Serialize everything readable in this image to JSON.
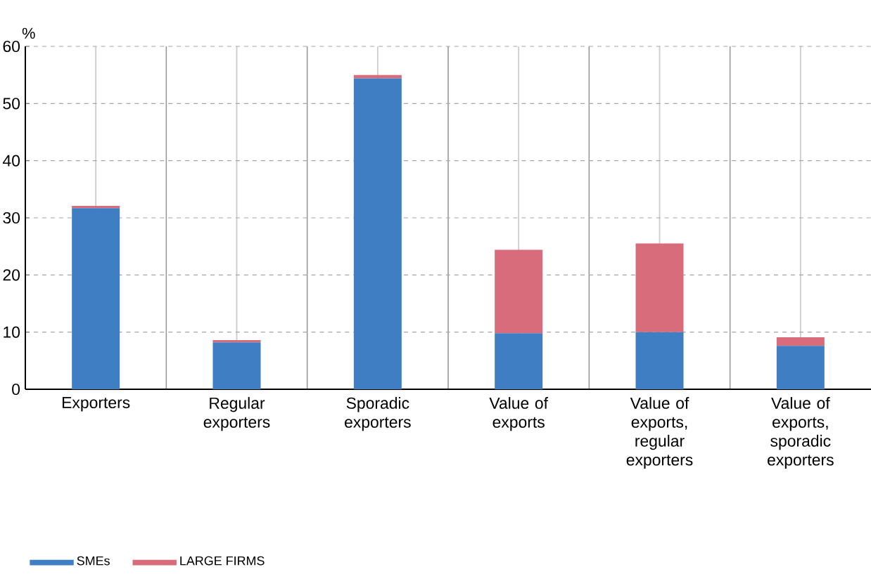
{
  "chart_data": {
    "type": "bar",
    "stacked": true,
    "ylabel": "%",
    "categories": [
      "Exporters",
      "Regular exporters",
      "Sporadic exporters",
      "Value of exports",
      "Value of exports, regular exporters",
      "Value of exports, sporadic exporters"
    ],
    "series": [
      {
        "name": "SMEs",
        "color": "#3f7ec2",
        "values": [
          31.7,
          8.2,
          54.4,
          9.8,
          10.0,
          7.6
        ]
      },
      {
        "name": "LARGE FIRMS",
        "color": "#d96c7a",
        "values": [
          0.4,
          0.4,
          0.6,
          14.6,
          15.5,
          1.5
        ]
      }
    ],
    "ylim": [
      0,
      60
    ],
    "yticks": [
      0,
      10,
      20,
      30,
      40,
      50,
      60
    ],
    "grid": true,
    "legend": "bottom left"
  }
}
